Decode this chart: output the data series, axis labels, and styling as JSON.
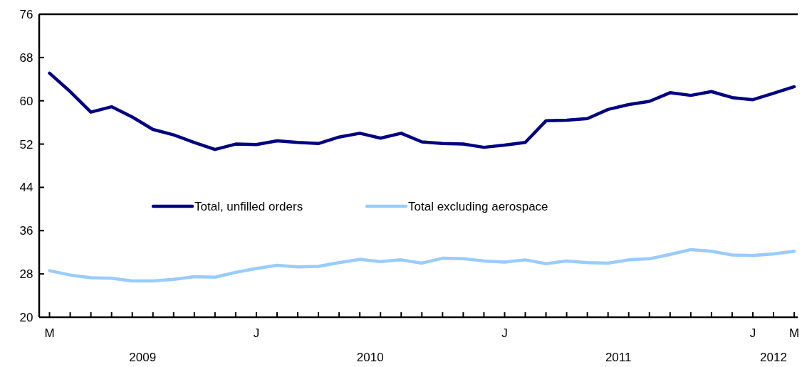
{
  "chart_data": {
    "type": "line",
    "categories": [
      "M",
      null,
      null,
      null,
      null,
      null,
      null,
      null,
      null,
      null,
      "J",
      null,
      null,
      null,
      null,
      null,
      null,
      null,
      null,
      null,
      null,
      null,
      "J",
      null,
      null,
      null,
      null,
      null,
      null,
      null,
      null,
      null,
      null,
      null,
      "J",
      null,
      "M"
    ],
    "series": [
      {
        "name": "Total, unfilled orders",
        "color": "#000080",
        "values": [
          65.1,
          61.7,
          57.9,
          58.9,
          57.0,
          54.7,
          53.7,
          52.3,
          51.0,
          52.0,
          51.9,
          52.6,
          52.3,
          52.1,
          53.3,
          54.0,
          53.1,
          54.0,
          52.4,
          52.1,
          52.0,
          51.4,
          51.8,
          52.3,
          56.3,
          56.4,
          56.7,
          58.4,
          59.3,
          59.9,
          61.5,
          61.0,
          61.7,
          60.6,
          60.2,
          61.4,
          62.6
        ]
      },
      {
        "name": "Total excluding aerospace",
        "color": "#99ccff",
        "values": [
          28.6,
          27.8,
          27.3,
          27.2,
          26.7,
          26.7,
          27.0,
          27.5,
          27.4,
          28.3,
          29.0,
          29.6,
          29.3,
          29.4,
          30.1,
          30.7,
          30.3,
          30.6,
          30.0,
          30.9,
          30.8,
          30.4,
          30.2,
          30.6,
          29.9,
          30.4,
          30.1,
          30.0,
          30.6,
          30.8,
          31.6,
          32.5,
          32.2,
          31.5,
          31.4,
          31.7,
          32.2
        ]
      }
    ],
    "ylim": [
      20,
      76
    ],
    "yticks": [
      20,
      28,
      36,
      44,
      52,
      60,
      68,
      76
    ],
    "annotations": [
      "2009",
      "2010",
      "2011",
      "2012"
    ],
    "legend": "center",
    "grid": false,
    "marker": "none",
    "line_style": "solid"
  }
}
